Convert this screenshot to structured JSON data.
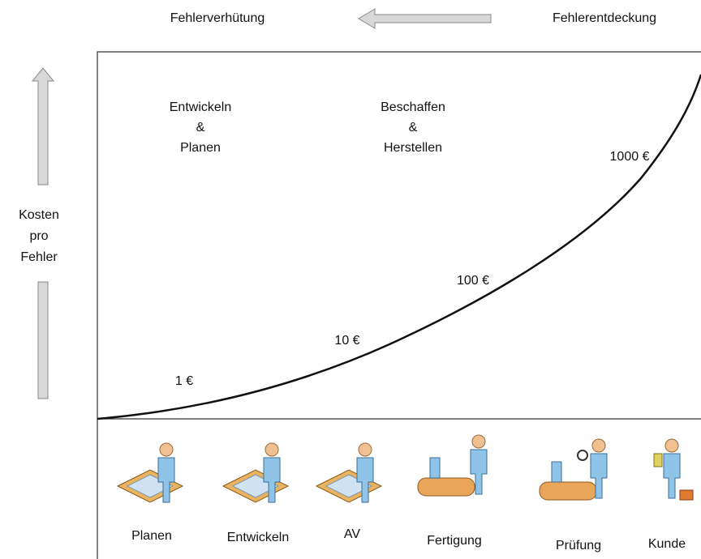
{
  "header": {
    "left": "Fehlerverhütung",
    "right": "Fehlerentdeckung"
  },
  "axis_label": [
    "Kosten",
    "pro",
    "Fehler"
  ],
  "phases": [
    [
      "Entwickeln",
      "&",
      "Planen"
    ],
    [
      "Beschaffen",
      "&",
      "Herstellen"
    ]
  ],
  "costs": [
    "1 €",
    "10 €",
    "100 €",
    "1000 €"
  ],
  "stages": [
    "Planen",
    "Entwickeln",
    "AV",
    "Fertigung",
    "Prüfung",
    "Kunde"
  ]
}
